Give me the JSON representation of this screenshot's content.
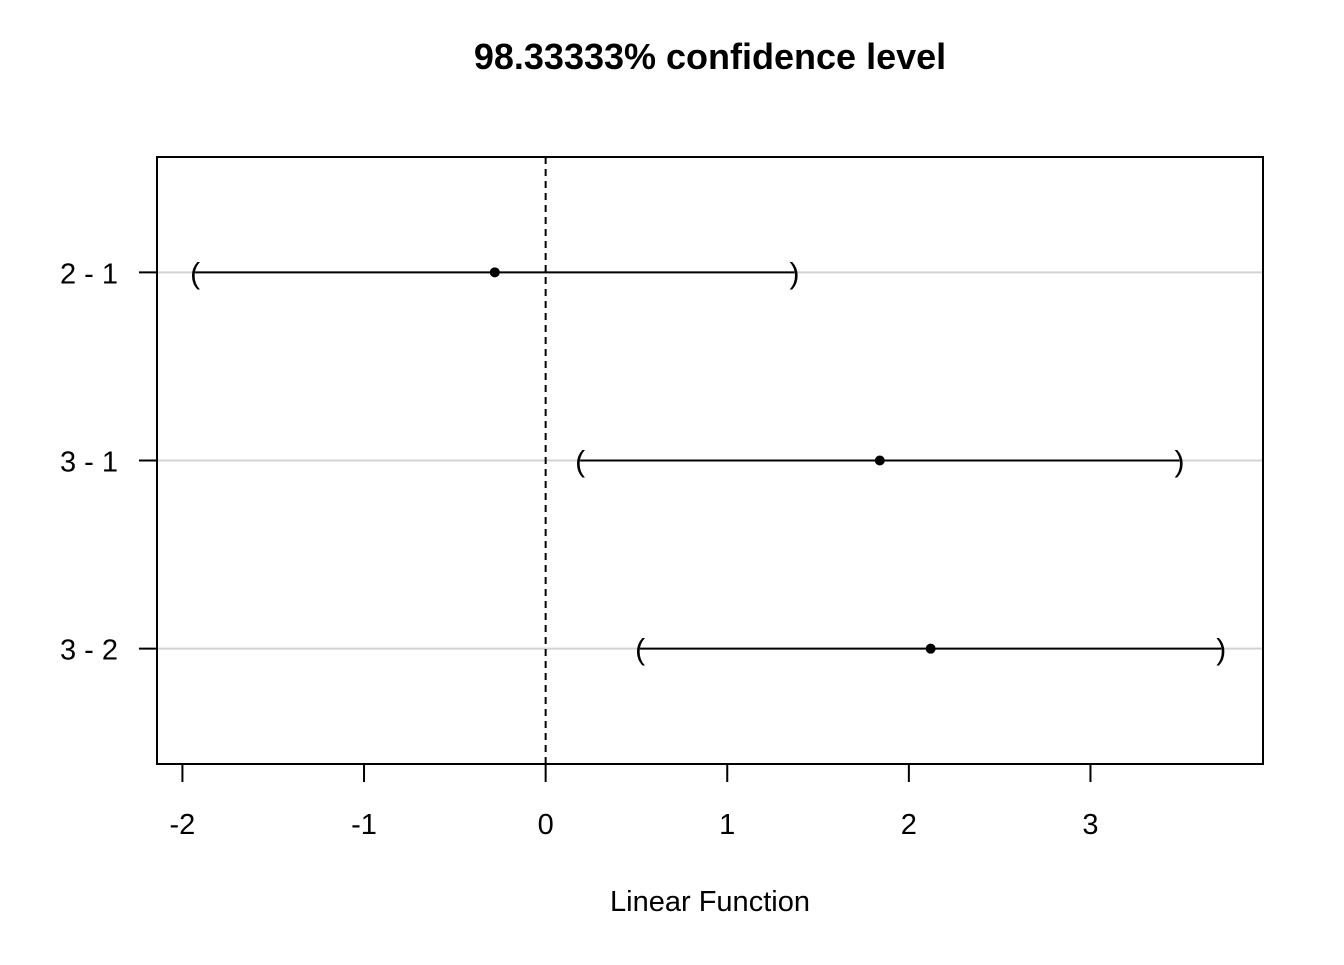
{
  "chart_data": {
    "type": "interval",
    "title": "98.33333% confidence level",
    "xlabel": "Linear Function",
    "ylabel": "",
    "xlim": [
      -2.14,
      3.95
    ],
    "x_ticks": [
      -2,
      -1,
      0,
      1,
      2,
      3
    ],
    "reference_line": 0,
    "grid": true,
    "intervals": [
      {
        "label": "2 - 1",
        "estimate": -0.28,
        "lower": -1.93,
        "upper": 1.37
      },
      {
        "label": "3 - 1",
        "estimate": 1.84,
        "lower": 0.19,
        "upper": 3.49
      },
      {
        "label": "3 - 2",
        "estimate": 2.12,
        "lower": 0.52,
        "upper": 3.72
      }
    ],
    "colors": {
      "interval": "#000000",
      "gridline": "#d3d3d3",
      "reference": "#000000"
    }
  }
}
